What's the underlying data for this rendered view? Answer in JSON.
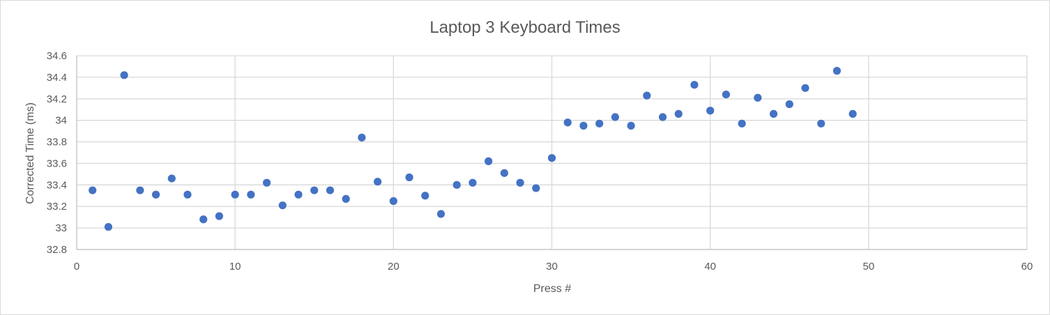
{
  "chart_data": {
    "type": "scatter",
    "title": "Laptop 3 Keyboard Times",
    "xlabel": "Press #",
    "ylabel": "Corrected Time (ms)",
    "xlim": [
      0,
      60
    ],
    "ylim": [
      32.8,
      34.6
    ],
    "x_ticks": [
      0,
      10,
      20,
      30,
      40,
      50,
      60
    ],
    "y_ticks": [
      32.8,
      33,
      33.2,
      33.4,
      33.6,
      33.8,
      34,
      34.2,
      34.4,
      34.6
    ],
    "x_tick_labels": [
      "0",
      "10",
      "20",
      "30",
      "40",
      "50",
      "60"
    ],
    "y_tick_labels": [
      "32.8",
      "33",
      "33.2",
      "33.4",
      "33.6",
      "33.8",
      "34",
      "34.2",
      "34.4",
      "34.6"
    ],
    "grid": true,
    "legend": "none",
    "marker_color": "#4472c4",
    "grid_color": "#d9d9d9",
    "series": [
      {
        "points": [
          [
            1,
            33.35
          ],
          [
            2,
            33.01
          ],
          [
            3,
            34.42
          ],
          [
            4,
            33.35
          ],
          [
            5,
            33.31
          ],
          [
            6,
            33.46
          ],
          [
            7,
            33.31
          ],
          [
            8,
            33.08
          ],
          [
            9,
            33.11
          ],
          [
            10,
            33.31
          ],
          [
            11,
            33.31
          ],
          [
            12,
            33.42
          ],
          [
            13,
            33.21
          ],
          [
            14,
            33.31
          ],
          [
            15,
            33.35
          ],
          [
            16,
            33.35
          ],
          [
            17,
            33.27
          ],
          [
            18,
            33.84
          ],
          [
            19,
            33.43
          ],
          [
            20,
            33.25
          ],
          [
            21,
            33.47
          ],
          [
            22,
            33.3
          ],
          [
            23,
            33.13
          ],
          [
            24,
            33.4
          ],
          [
            25,
            33.42
          ],
          [
            26,
            33.62
          ],
          [
            27,
            33.51
          ],
          [
            28,
            33.42
          ],
          [
            29,
            33.37
          ],
          [
            30,
            33.65
          ],
          [
            31,
            33.98
          ],
          [
            32,
            33.95
          ],
          [
            33,
            33.97
          ],
          [
            34,
            34.03
          ],
          [
            35,
            33.95
          ],
          [
            36,
            34.23
          ],
          [
            37,
            34.03
          ],
          [
            38,
            34.06
          ],
          [
            39,
            34.33
          ],
          [
            40,
            34.09
          ],
          [
            41,
            34.24
          ],
          [
            42,
            33.97
          ],
          [
            43,
            34.21
          ],
          [
            44,
            34.06
          ],
          [
            45,
            34.15
          ],
          [
            46,
            34.3
          ],
          [
            47,
            33.97
          ],
          [
            48,
            34.46
          ],
          [
            49,
            34.06
          ]
        ]
      }
    ]
  }
}
